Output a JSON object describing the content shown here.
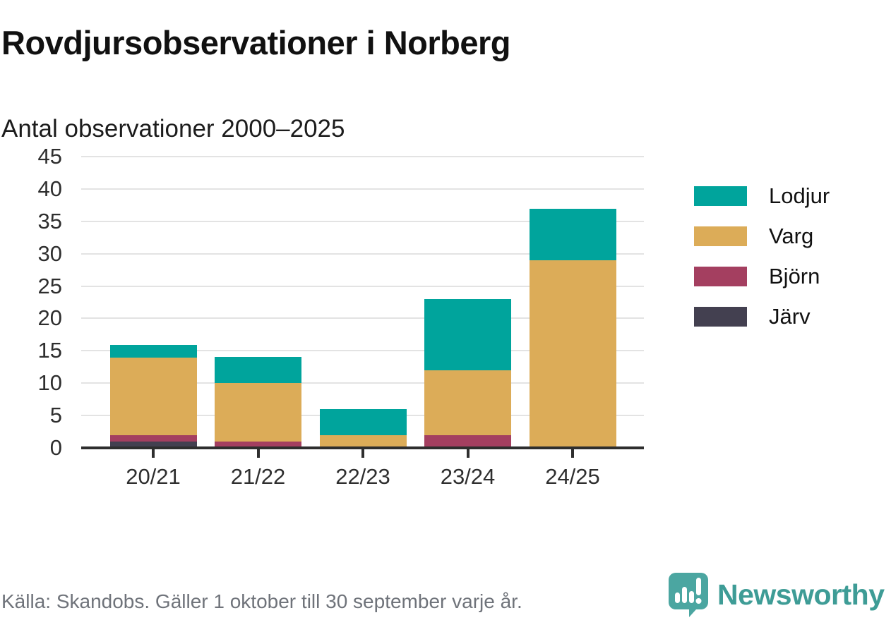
{
  "header": {
    "title": "Rovdjursobservationer i Norberg",
    "subtitle": "Antal observationer 2000–2025"
  },
  "chart_data": {
    "type": "bar",
    "stacked": true,
    "title": "Rovdjursobservationer i Norberg",
    "subtitle": "Antal observationer 2000–2025",
    "categories": [
      "20/21",
      "21/22",
      "22/23",
      "23/24",
      "24/25"
    ],
    "series": [
      {
        "name": "Järv",
        "color": "#434050",
        "values": [
          1,
          0,
          0,
          0,
          0
        ]
      },
      {
        "name": "Björn",
        "color": "#a43f60",
        "values": [
          1,
          1,
          0,
          2,
          0
        ]
      },
      {
        "name": "Varg",
        "color": "#dcac58",
        "values": [
          12,
          9,
          2,
          10,
          29
        ]
      },
      {
        "name": "Lodjur",
        "color": "#00a49c",
        "values": [
          2,
          4,
          4,
          11,
          8
        ]
      }
    ],
    "totals": [
      16,
      14,
      6,
      23,
      37
    ],
    "xlabel": "",
    "ylabel": "",
    "ylim": [
      0,
      45
    ],
    "yticks": [
      0,
      5,
      10,
      15,
      20,
      25,
      30,
      35,
      40,
      45
    ],
    "grid": "horizontal",
    "legend_position": "right",
    "legend_order": [
      "Lodjur",
      "Varg",
      "Björn",
      "Järv"
    ]
  },
  "footer": {
    "source": "Källa: Skandobs. Gäller 1 oktober till 30 september varje år.",
    "brand": "Newsworthy"
  },
  "colors": {
    "lodjur": "#00a49c",
    "varg": "#dcac58",
    "bjorn": "#a43f60",
    "jarv": "#434050",
    "gridline": "#e3e3e3",
    "axis_line": "#2e2e2e",
    "footer_text": "#6f737a",
    "brand_teal": "#3e9c96",
    "logo_icon": "#4ba6a1"
  }
}
